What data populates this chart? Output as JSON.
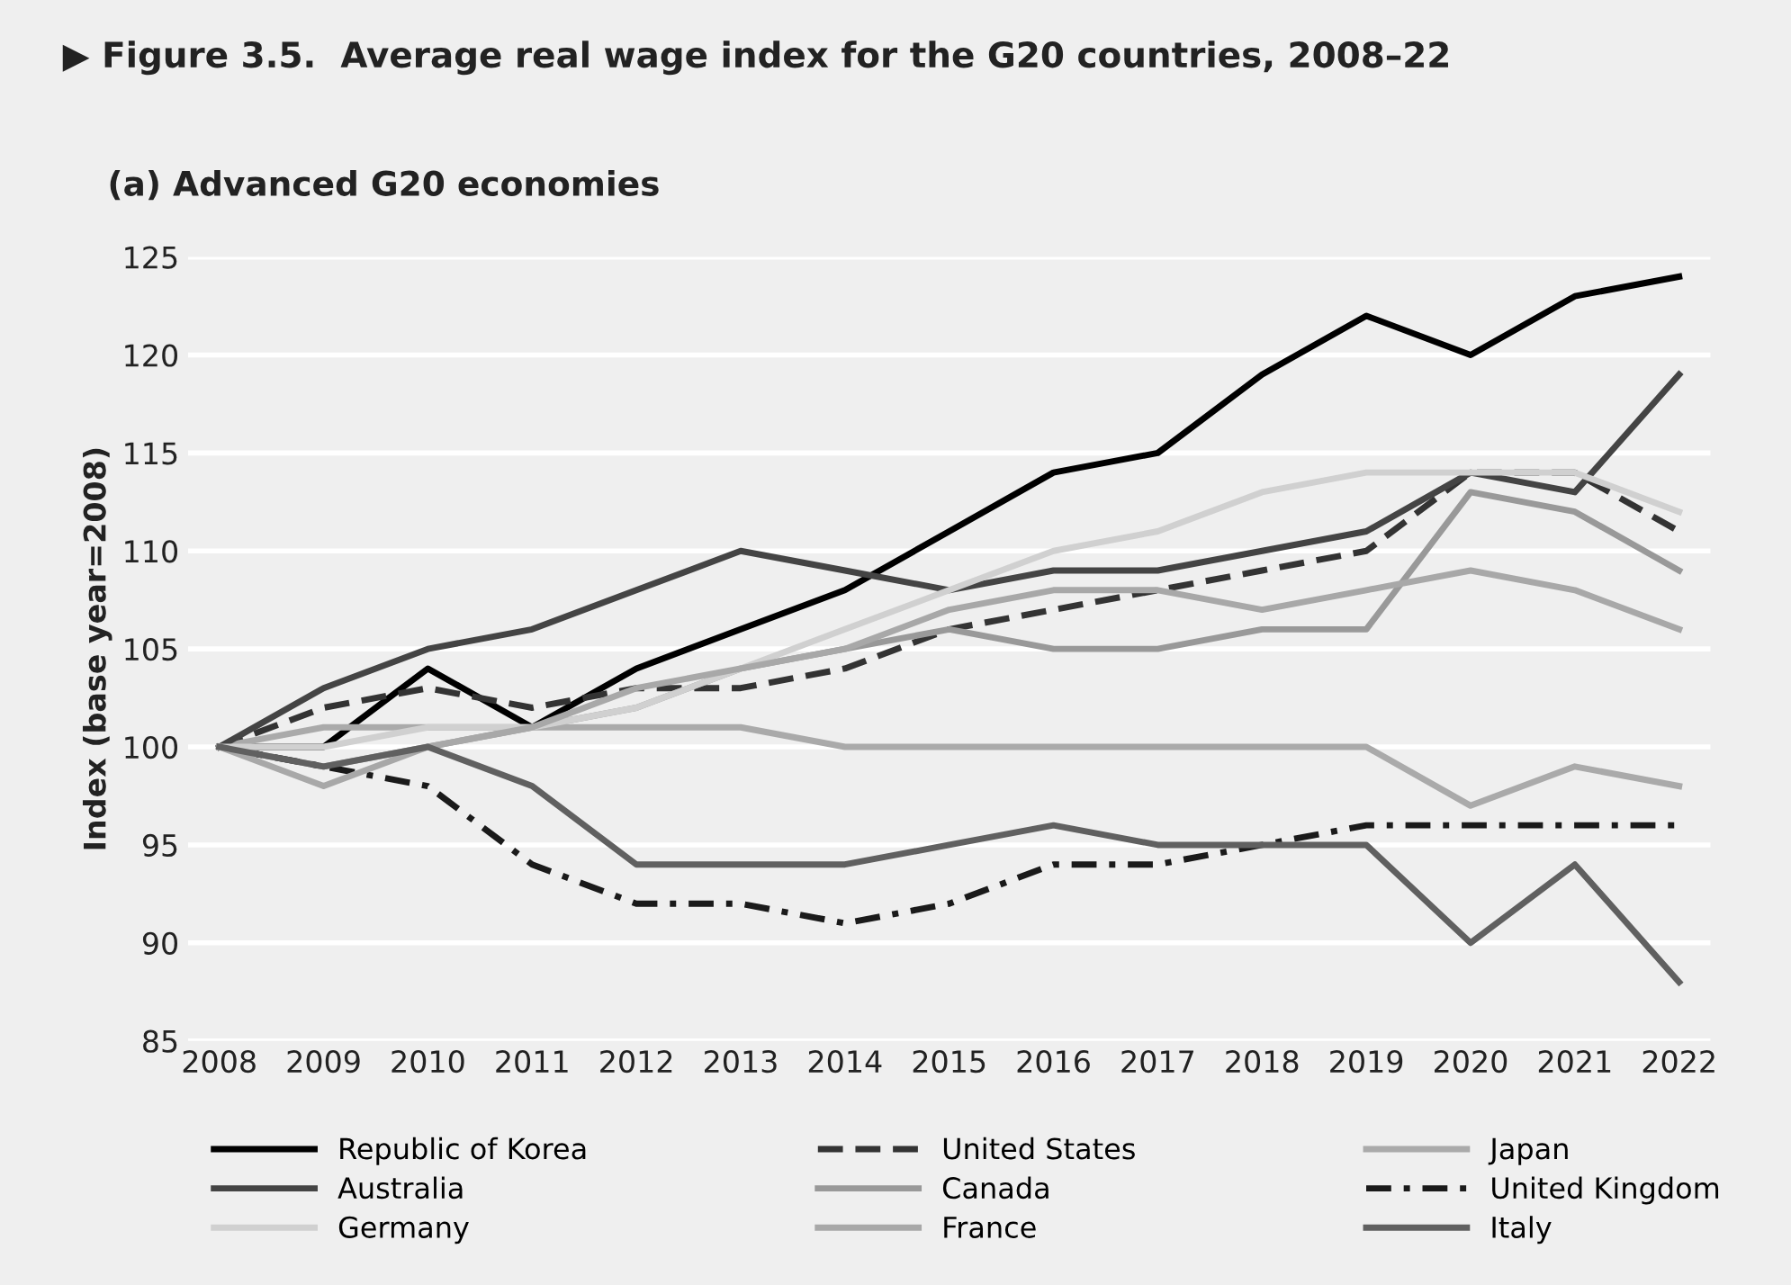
{
  "chart_data": {
    "type": "line",
    "title": "▶ Figure 3.5.  Average real wage index for the G20 countries, 2008–22",
    "subtitle": "(a) Advanced G20 economies",
    "ylabel": "Index (base year=2008)",
    "x": [
      2008,
      2009,
      2010,
      2011,
      2012,
      2013,
      2014,
      2015,
      2016,
      2017,
      2018,
      2019,
      2020,
      2021,
      2022
    ],
    "xlim": [
      2007.7,
      2022.3
    ],
    "xticks": [
      2008,
      2009,
      2010,
      2011,
      2012,
      2013,
      2014,
      2015,
      2016,
      2017,
      2018,
      2019,
      2020,
      2021,
      2022
    ],
    "ylim": [
      85,
      125
    ],
    "yticks": [
      85,
      90,
      95,
      100,
      105,
      110,
      115,
      120,
      125
    ],
    "grid": "y",
    "legend": "bottom",
    "series": [
      {
        "name": "Republic of Korea",
        "color": "#000000",
        "line_style": "solid",
        "values": [
          100,
          100,
          104,
          101,
          104,
          106,
          108,
          111,
          114,
          115,
          119,
          122,
          120,
          123,
          124
        ]
      },
      {
        "name": "United States",
        "color": "#333333",
        "line_style": "dashed",
        "values": [
          100,
          102,
          103,
          102,
          103,
          103,
          104,
          106,
          107,
          108,
          109,
          110,
          114,
          114,
          111
        ]
      },
      {
        "name": "Japan",
        "color": "#aaaaaa",
        "line_style": "solid",
        "values": [
          100,
          101,
          101,
          101,
          101,
          101,
          100,
          100,
          100,
          100,
          100,
          100,
          97,
          99,
          98
        ]
      },
      {
        "name": "Australia",
        "color": "#444444",
        "line_style": "solid",
        "values": [
          100,
          103,
          105,
          106,
          108,
          110,
          109,
          108,
          109,
          109,
          110,
          111,
          114,
          113,
          119
        ]
      },
      {
        "name": "Canada",
        "color": "#999999",
        "line_style": "solid",
        "values": [
          100,
          99,
          100,
          101,
          102,
          104,
          105,
          106,
          105,
          105,
          106,
          106,
          113,
          112,
          109
        ]
      },
      {
        "name": "United Kingdom",
        "color": "#1a1a1a",
        "line_style": "dashdot",
        "values": [
          100,
          99,
          98,
          94,
          92,
          92,
          91,
          92,
          94,
          94,
          95,
          96,
          96,
          96,
          96
        ]
      },
      {
        "name": "Germany",
        "color": "#d0d0d0",
        "line_style": "solid",
        "values": [
          100,
          100,
          101,
          101,
          102,
          104,
          106,
          108,
          110,
          111,
          113,
          114,
          114,
          114,
          112
        ]
      },
      {
        "name": "France",
        "color": "#a8a8a8",
        "line_style": "solid",
        "values": [
          100,
          98,
          100,
          101,
          103,
          104,
          105,
          107,
          108,
          108,
          107,
          108,
          109,
          108,
          106
        ]
      },
      {
        "name": "Italy",
        "color": "#606060",
        "line_style": "solid",
        "values": [
          100,
          99,
          100,
          98,
          94,
          94,
          94,
          95,
          96,
          95,
          95,
          95,
          90,
          94,
          88
        ]
      }
    ]
  }
}
